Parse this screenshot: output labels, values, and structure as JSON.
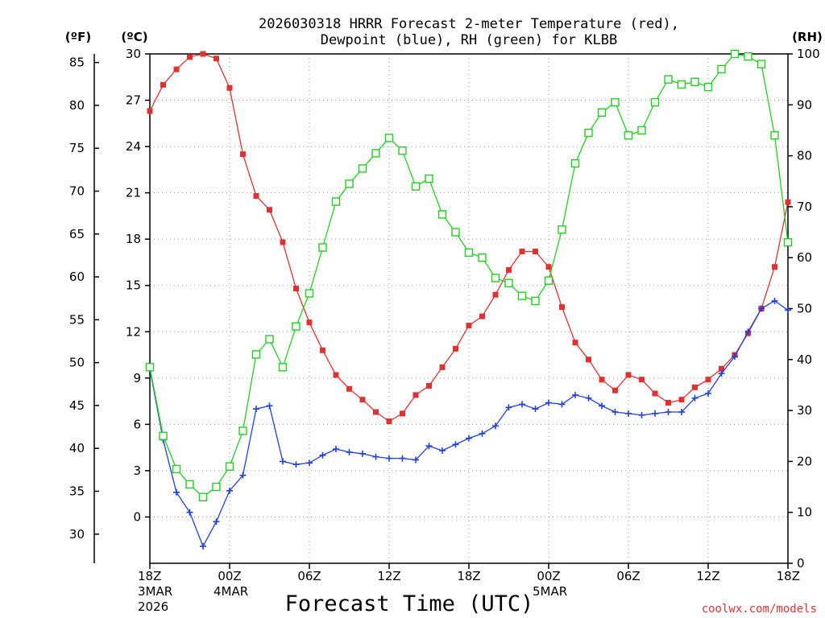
{
  "chart_data": {
    "type": "line",
    "title_line1": "2026030318 HRRR Forecast 2-meter Temperature (red),",
    "title_line2": "Dewpoint (blue), RH (green) for KLBB",
    "xlabel": "Forecast Time (UTC)",
    "credit": "coolwx.com/models",
    "units": {
      "fahrenheit": "(ºF)",
      "celsius": "(ºC)",
      "rh": "(RH)"
    },
    "celsius_axis": {
      "range": [
        -3,
        30
      ],
      "ticks": [
        0,
        3,
        6,
        9,
        12,
        15,
        18,
        21,
        24,
        27,
        30
      ]
    },
    "fahrenheit_axis": {
      "ticks": [
        30,
        35,
        40,
        45,
        50,
        55,
        60,
        65,
        70,
        75,
        80,
        85
      ]
    },
    "rh_axis": {
      "range": [
        0,
        100
      ],
      "ticks": [
        0,
        10,
        20,
        30,
        40,
        50,
        60,
        70,
        80,
        90,
        100
      ]
    },
    "x_axis": {
      "range_hours": [
        0,
        48
      ],
      "ticks": [
        {
          "h": 0,
          "label": "18Z",
          "date": "3MAR",
          "year": "2026"
        },
        {
          "h": 6,
          "label": "00Z",
          "date": "4MAR"
        },
        {
          "h": 12,
          "label": "06Z"
        },
        {
          "h": 18,
          "label": "12Z"
        },
        {
          "h": 24,
          "label": "18Z"
        },
        {
          "h": 30,
          "label": "00Z",
          "date": "5MAR"
        },
        {
          "h": 36,
          "label": "06Z"
        },
        {
          "h": 42,
          "label": "12Z"
        },
        {
          "h": 48,
          "label": "18Z"
        }
      ]
    },
    "hours": [
      0,
      1,
      2,
      3,
      4,
      5,
      6,
      7,
      8,
      9,
      10,
      11,
      12,
      13,
      14,
      15,
      16,
      17,
      18,
      19,
      20,
      21,
      22,
      23,
      24,
      25,
      26,
      27,
      28,
      29,
      30,
      31,
      32,
      33,
      34,
      35,
      36,
      37,
      38,
      39,
      40,
      41,
      42,
      43,
      44,
      45,
      46,
      47,
      48
    ],
    "series": [
      {
        "name": "Temperature",
        "unit": "C",
        "color": "#e03030",
        "marker": "filled-square",
        "values": [
          26.3,
          28.0,
          29.0,
          29.8,
          30.0,
          29.7,
          27.8,
          23.5,
          20.8,
          19.9,
          17.8,
          14.8,
          12.6,
          10.8,
          9.2,
          8.3,
          7.6,
          6.8,
          6.2,
          6.7,
          7.9,
          8.5,
          9.7,
          10.9,
          12.4,
          13.0,
          14.4,
          16.0,
          17.2,
          17.2,
          16.2,
          13.6,
          11.3,
          10.2,
          8.9,
          8.2,
          9.2,
          8.9,
          8.0,
          7.4,
          7.6,
          8.4,
          8.9,
          9.6,
          10.5,
          11.9,
          13.5,
          16.2,
          20.4
        ]
      },
      {
        "name": "Dewpoint",
        "unit": "C",
        "color": "#2040e0",
        "marker": "plus",
        "values": [
          9.6,
          5.0,
          1.6,
          0.3,
          -1.9,
          -0.3,
          1.7,
          2.7,
          7.0,
          7.2,
          3.6,
          3.4,
          3.5,
          4.0,
          4.4,
          4.2,
          4.1,
          3.9,
          3.8,
          3.8,
          3.7,
          4.6,
          4.3,
          4.7,
          5.1,
          5.4,
          5.9,
          7.1,
          7.3,
          7.0,
          7.4,
          7.3,
          7.9,
          7.7,
          7.2,
          6.8,
          6.7,
          6.6,
          6.7,
          6.8,
          6.8,
          7.7,
          8.0,
          9.3,
          10.4,
          12.0,
          13.5,
          14.0,
          13.4
        ]
      },
      {
        "name": "RH",
        "unit": "%",
        "color": "#20d020",
        "marker": "open-square",
        "values": [
          38.5,
          25,
          18.5,
          15.5,
          13,
          15,
          19,
          26,
          41,
          44,
          38.5,
          46.5,
          53,
          62,
          71,
          74.5,
          77.5,
          80.5,
          83.5,
          81,
          74,
          75.5,
          68.5,
          65,
          61,
          60,
          56,
          55,
          52.5,
          51.5,
          55.5,
          65.5,
          78.5,
          84.5,
          88.5,
          90.5,
          84,
          85,
          90.5,
          95,
          94,
          94.5,
          93.5,
          97,
          100,
          99.5,
          98,
          84,
          63
        ]
      }
    ]
  }
}
